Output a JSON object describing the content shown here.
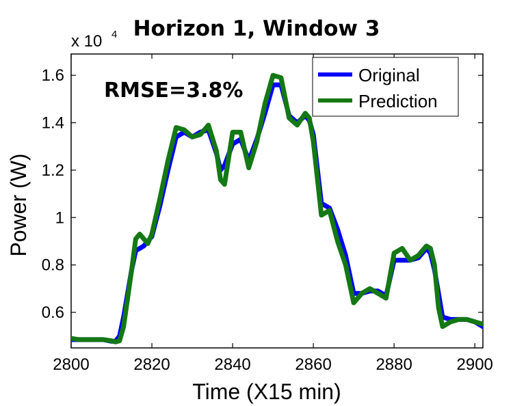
{
  "chart_data": {
    "type": "line",
    "title": "Horizon 1, Window 3",
    "xlabel": "Time (X15 min)",
    "ylabel": "Power (W)",
    "y_exponent_label": "x 10",
    "y_exponent_power": "4",
    "annotation": "RMSE=3.8%",
    "xlim": [
      2800,
      2902
    ],
    "ylim": [
      0.45,
      1.69
    ],
    "xticks": [
      2800,
      2820,
      2840,
      2860,
      2880,
      2900
    ],
    "xtick_labels": [
      "2800",
      "2820",
      "2840",
      "2860",
      "2880",
      "2900"
    ],
    "yticks": [
      0.6,
      0.8,
      1.0,
      1.2,
      1.4,
      1.6
    ],
    "ytick_labels": [
      "0.6",
      "0.8",
      "1",
      "1.2",
      "1.4",
      "1.6"
    ],
    "grid": false,
    "legend_position": "top-right",
    "series": [
      {
        "name": "Original",
        "color": "#0000ff",
        "x": [
          2800,
          2802,
          2804,
          2806,
          2808,
          2810,
          2811,
          2812,
          2813,
          2814,
          2815,
          2816,
          2817,
          2818,
          2819,
          2820,
          2822,
          2824,
          2826,
          2828,
          2830,
          2832,
          2834,
          2836,
          2837,
          2838,
          2840,
          2842,
          2844,
          2846,
          2848,
          2850,
          2852,
          2854,
          2856,
          2858,
          2859,
          2860,
          2862,
          2864,
          2866,
          2868,
          2870,
          2872,
          2874,
          2876,
          2878,
          2880,
          2882,
          2884,
          2886,
          2888,
          2889,
          2890,
          2891,
          2892,
          2894,
          2896,
          2898,
          2900,
          2902
        ],
        "y": [
          0.485,
          0.485,
          0.485,
          0.485,
          0.485,
          0.478,
          0.478,
          0.5,
          0.58,
          0.68,
          0.78,
          0.86,
          0.87,
          0.88,
          0.9,
          0.92,
          1.05,
          1.2,
          1.34,
          1.36,
          1.34,
          1.36,
          1.37,
          1.27,
          1.2,
          1.22,
          1.31,
          1.33,
          1.24,
          1.33,
          1.44,
          1.56,
          1.56,
          1.43,
          1.4,
          1.43,
          1.41,
          1.35,
          1.06,
          1.04,
          0.95,
          0.84,
          0.68,
          0.68,
          0.69,
          0.69,
          0.67,
          0.82,
          0.82,
          0.82,
          0.83,
          0.87,
          0.85,
          0.78,
          0.68,
          0.58,
          0.57,
          0.57,
          0.57,
          0.56,
          0.54
        ]
      },
      {
        "name": "Prediction",
        "color": "#147814",
        "x": [
          2800,
          2802,
          2804,
          2806,
          2808,
          2810,
          2811,
          2812,
          2813,
          2814,
          2815,
          2816,
          2817,
          2818,
          2819,
          2820,
          2822,
          2824,
          2826,
          2828,
          2830,
          2832,
          2834,
          2836,
          2837,
          2838,
          2840,
          2842,
          2844,
          2846,
          2848,
          2850,
          2852,
          2854,
          2856,
          2858,
          2859,
          2860,
          2862,
          2864,
          2866,
          2868,
          2870,
          2872,
          2874,
          2876,
          2878,
          2880,
          2882,
          2884,
          2886,
          2888,
          2889,
          2890,
          2891,
          2892,
          2894,
          2896,
          2898,
          2900,
          2902
        ],
        "y": [
          0.49,
          0.485,
          0.485,
          0.485,
          0.485,
          0.48,
          0.475,
          0.48,
          0.54,
          0.66,
          0.78,
          0.91,
          0.93,
          0.91,
          0.89,
          0.93,
          1.08,
          1.24,
          1.38,
          1.37,
          1.34,
          1.35,
          1.39,
          1.28,
          1.16,
          1.14,
          1.36,
          1.36,
          1.21,
          1.32,
          1.48,
          1.6,
          1.59,
          1.42,
          1.39,
          1.44,
          1.42,
          1.32,
          1.01,
          1.03,
          0.9,
          0.8,
          0.64,
          0.68,
          0.7,
          0.68,
          0.66,
          0.85,
          0.87,
          0.82,
          0.84,
          0.88,
          0.87,
          0.8,
          0.62,
          0.54,
          0.56,
          0.57,
          0.57,
          0.56,
          0.55
        ]
      }
    ]
  }
}
